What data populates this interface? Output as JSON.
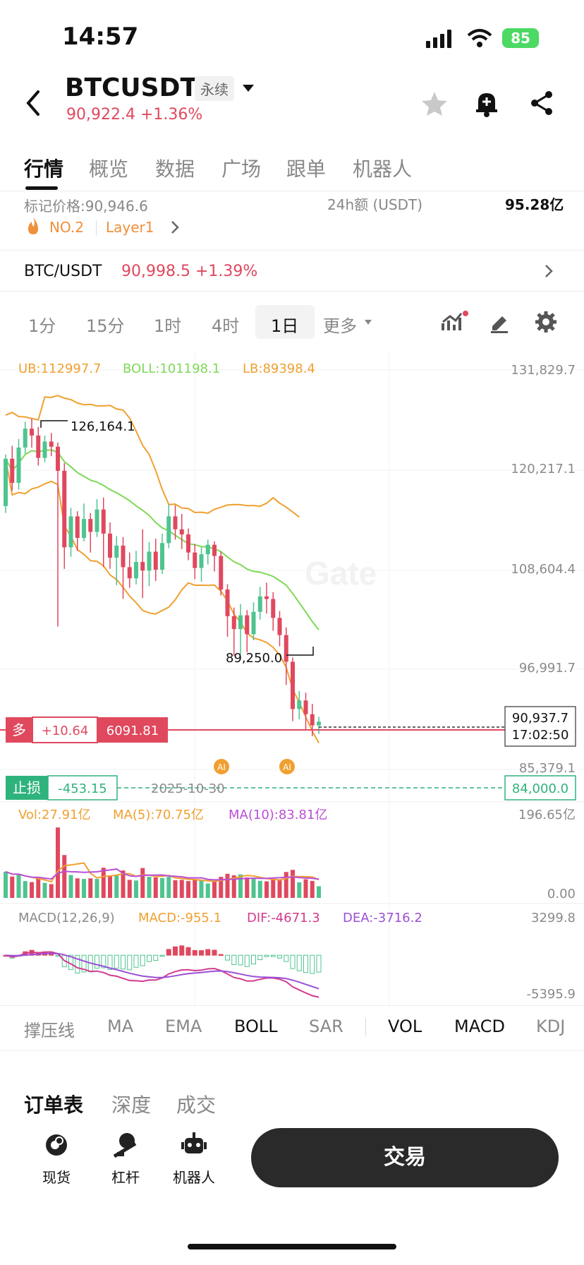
{
  "status_bar": {
    "time": "14:57",
    "battery": "85"
  },
  "header": {
    "symbol": "BTCUSDT",
    "contract_type": "永续",
    "price": "90,922.4",
    "change": "+1.36%"
  },
  "tabs": [
    "行情",
    "概览",
    "数据",
    "广场",
    "跟单",
    "机器人"
  ],
  "info": {
    "mark_price_label": "标记价格:90,946.6",
    "vol_24h_label": "24h额 (USDT)",
    "vol_24h_value": "95.28亿",
    "rank": "NO.2",
    "category": "Layer1"
  },
  "spot": {
    "pair": "BTC/USDT",
    "price": "90,998.5",
    "change": "+1.39%"
  },
  "timeframes": [
    "1分",
    "15分",
    "1时",
    "4时",
    "1日",
    "更多"
  ],
  "boll_legend": {
    "ub": "UB:112997.7",
    "boll": "BOLL:101198.1",
    "lb": "LB:89398.4"
  },
  "price_axis": [
    "131,829.7",
    "120,217.1",
    "108,604.4",
    "96,991.7",
    "85,379.1"
  ],
  "annotations": {
    "high": "126,164.1",
    "low": "89,250.0",
    "current_price": "90,937.7",
    "countdown": "17:02:50",
    "date": "2025-10-30",
    "ai_tag": "AI"
  },
  "position": {
    "side": "多",
    "pnl": "+10.64",
    "entry": "6091.81"
  },
  "stop_loss": {
    "label": "止损",
    "pnl": "-453.15",
    "price": "84,000.0"
  },
  "volume_legend": {
    "vol": "Vol:27.91亿",
    "ma5": "MA(5):70.75亿",
    "ma10": "MA(10):83.81亿"
  },
  "volume_axis": [
    "196.65亿",
    "0.00"
  ],
  "macd_legend": {
    "name": "MACD(12,26,9)",
    "macd": "MACD:-955.1",
    "dif": "DIF:-4671.3",
    "dea": "DEA:-3716.2"
  },
  "macd_axis": [
    "3299.8",
    "-5395.9"
  ],
  "indicators": [
    "撑压线",
    "MA",
    "EMA",
    "BOLL",
    "SAR",
    "VOL",
    "MACD",
    "KDJ"
  ],
  "order_tabs": [
    "订单表",
    "深度",
    "成交"
  ],
  "bottom_nav": [
    "现货",
    "杠杆",
    "机器人"
  ],
  "trade_button": "交易",
  "watermark": "Gate",
  "colors": {
    "up": "#4fc48f",
    "down": "#e0485e",
    "boll_mid": "#7ed957",
    "boll_band": "#f0a030",
    "macd_dif": "#d23b8e",
    "macd_dea": "#9b4fd6"
  },
  "chart_data": {
    "type": "candlestick",
    "ylim": [
      85379.1,
      131829.7
    ],
    "high": 126164.1,
    "low": 89250.0,
    "candles": [
      [
        116000,
        121500,
        115200,
        122000
      ],
      [
        121500,
        118700,
        117800,
        123000
      ],
      [
        118700,
        122800,
        117900,
        123800
      ],
      [
        122800,
        125000,
        122100,
        125800
      ],
      [
        125000,
        124200,
        122800,
        126164
      ],
      [
        124200,
        121600,
        120700,
        125200
      ],
      [
        121600,
        123500,
        121100,
        124200
      ],
      [
        123500,
        122900,
        121800,
        124500
      ],
      [
        122900,
        120100,
        102000,
        123400
      ],
      [
        120100,
        111200,
        108700,
        121000
      ],
      [
        111200,
        114800,
        110100,
        115800
      ],
      [
        114800,
        112300,
        110800,
        115400
      ],
      [
        112300,
        114500,
        111900,
        116300
      ],
      [
        114500,
        113000,
        110600,
        115200
      ],
      [
        113000,
        115600,
        112400,
        116800
      ],
      [
        115600,
        112800,
        108900,
        117000
      ],
      [
        112800,
        110000,
        108700,
        114100
      ],
      [
        110000,
        111400,
        106800,
        112500
      ],
      [
        111400,
        108900,
        105200,
        112400
      ],
      [
        108900,
        107600,
        106500,
        110600
      ],
      [
        107600,
        109500,
        106900,
        110800
      ],
      [
        109500,
        108500,
        105300,
        113300
      ],
      [
        108500,
        110700,
        106700,
        111800
      ],
      [
        110700,
        108600,
        107300,
        112200
      ],
      [
        108600,
        111700,
        108100,
        112800
      ],
      [
        111700,
        114800,
        111100,
        116200
      ],
      [
        114800,
        113300,
        112100,
        116100
      ],
      [
        113300,
        112700,
        111000,
        115100
      ],
      [
        112700,
        110600,
        109700,
        113400
      ],
      [
        110600,
        108800,
        107500,
        111600
      ],
      [
        108800,
        110400,
        107200,
        111200
      ],
      [
        110400,
        111500,
        109200,
        112100
      ],
      [
        111500,
        110200,
        108400,
        111900
      ],
      [
        110200,
        106300,
        105600,
        110700
      ],
      [
        106300,
        103200,
        100800,
        106900
      ],
      [
        103200,
        101700,
        98600,
        104200
      ],
      [
        101700,
        103300,
        98700,
        104600
      ],
      [
        103300,
        101100,
        99000,
        103900
      ],
      [
        101100,
        103700,
        100400,
        104800
      ],
      [
        103700,
        105500,
        102800,
        106600
      ],
      [
        105500,
        105200,
        103500,
        107100
      ],
      [
        105200,
        103000,
        101500,
        106000
      ],
      [
        103000,
        101000,
        99700,
        103800
      ],
      [
        101000,
        97900,
        95200,
        101900
      ],
      [
        97900,
        92400,
        91000,
        98400
      ],
      [
        92400,
        93400,
        91200,
        94500
      ],
      [
        93400,
        91800,
        90000,
        94300
      ],
      [
        91800,
        90500,
        89250,
        93000
      ],
      [
        90500,
        90938,
        89500,
        91500
      ]
    ],
    "volume_ylim": [
      0,
      196.65
    ],
    "macd_ylim": [
      -5395.9,
      3299.8
    ],
    "current_price": 90937.7,
    "stop_loss_price": 84000.0
  }
}
